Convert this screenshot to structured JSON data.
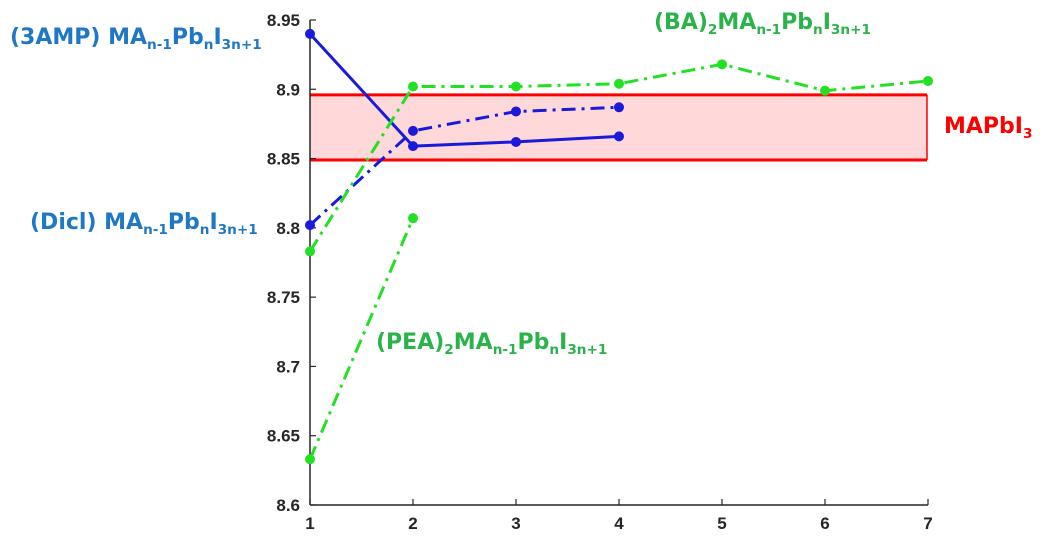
{
  "chart_data": {
    "type": "line",
    "x": [
      1,
      2,
      3,
      4,
      5,
      6,
      7
    ],
    "xlim": [
      1,
      7
    ],
    "ylim": [
      8.6,
      8.95
    ],
    "xticks": [
      "1",
      "2",
      "3",
      "4",
      "5",
      "6",
      "7"
    ],
    "yticks": [
      "8.6",
      "8.65",
      "8.7",
      "8.75",
      "8.8",
      "8.85",
      "8.9",
      "8.95"
    ],
    "grid": false,
    "band": {
      "label_main": "MAPbI",
      "label_sub": "3",
      "ymin": 8.849,
      "ymax": 8.896,
      "xmin": 1,
      "xmax": 7,
      "edge_color": "#ff0000",
      "fill_color": "#ffd9d9"
    },
    "series": [
      {
        "key": "3amp",
        "x": [
          1,
          2,
          3,
          4
        ],
        "values": [
          8.94,
          8.859,
          8.862,
          8.866
        ],
        "color": "#1a1adb",
        "dash": "solid",
        "label_parts": [
          "(3AMP) MA",
          "n-1",
          "Pb",
          "n",
          "I",
          "3n+1"
        ]
      },
      {
        "key": "dicl",
        "x": [
          1,
          2,
          3,
          4
        ],
        "values": [
          8.802,
          8.87,
          8.884,
          8.887
        ],
        "color": "#1a1adb",
        "dash": "dashdot",
        "label_parts": [
          "(Dicl) MA",
          "n-1",
          "Pb",
          "n",
          "I",
          "3n+1"
        ]
      },
      {
        "key": "ba",
        "x": [
          1,
          2,
          3,
          4,
          5,
          6,
          7
        ],
        "values": [
          8.783,
          8.902,
          8.902,
          8.904,
          8.918,
          8.899,
          8.906
        ],
        "color": "#22e022",
        "dash": "dashdot",
        "label_parts": [
          "(BA)",
          "2",
          "MA",
          "n-1",
          "Pb",
          "n",
          "I",
          "3n+1"
        ]
      },
      {
        "key": "pea",
        "x": [
          1,
          2
        ],
        "values": [
          8.633,
          8.807
        ],
        "color": "#22e022",
        "dash": "dashdot",
        "label_parts": [
          "(PEA)",
          "2",
          "MA",
          "n-1",
          "Pb",
          "n",
          "I",
          "3n+1"
        ]
      }
    ]
  }
}
